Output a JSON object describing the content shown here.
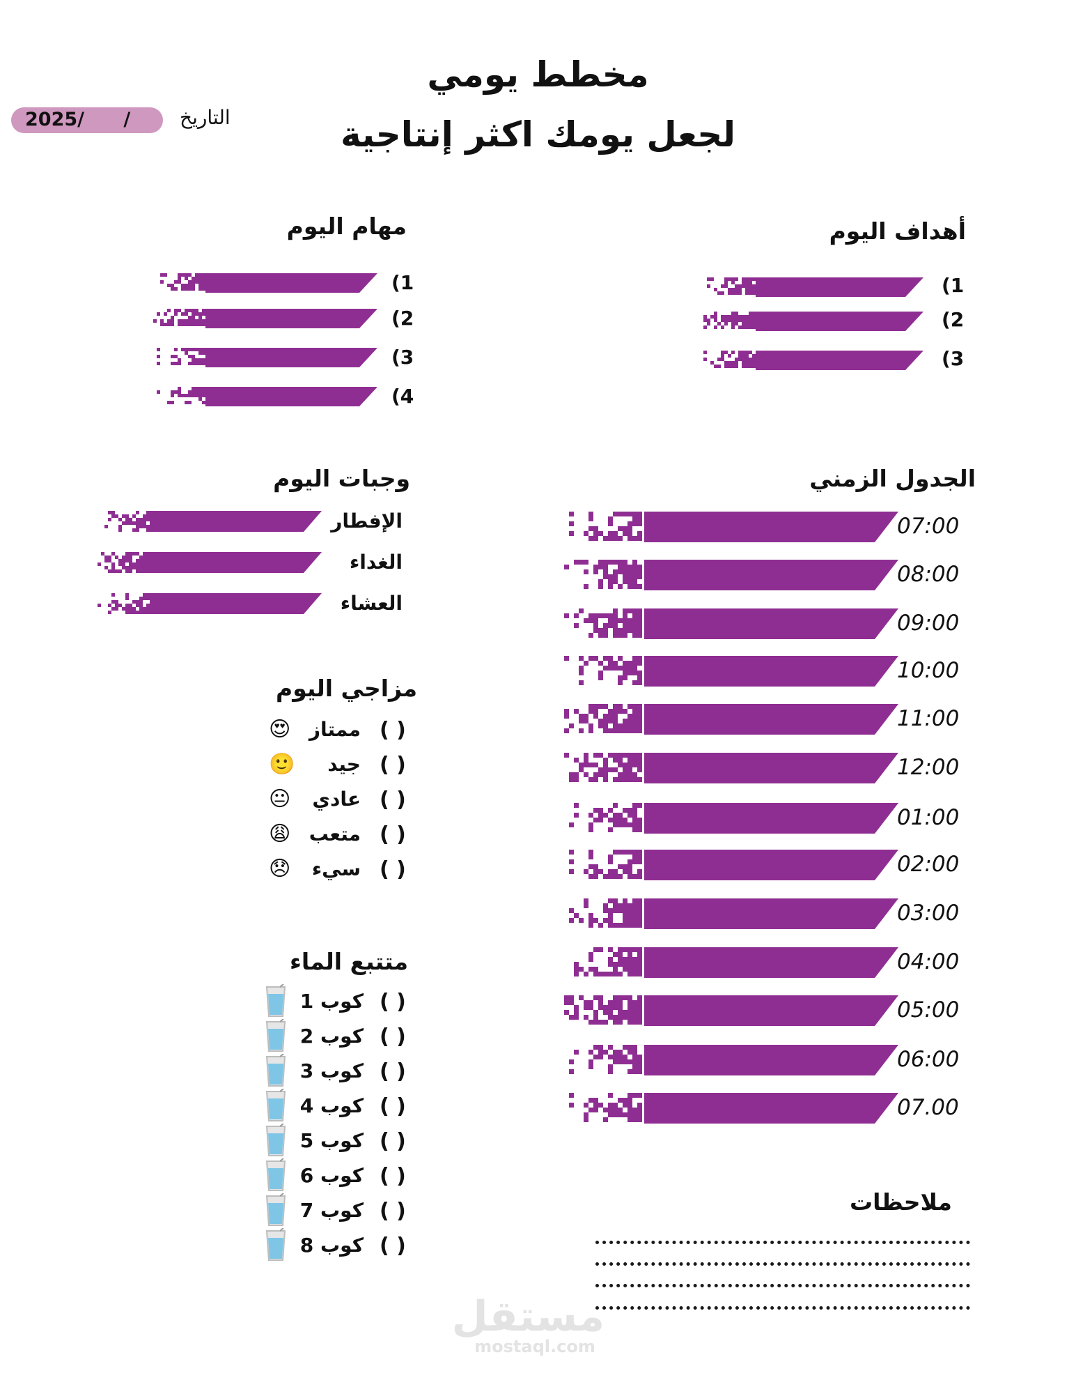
{
  "header": {
    "title_line1": "مخطط يومي",
    "title_line2": "لجعل يومك اكثر إنتاجية",
    "date_label": "التاريخ",
    "date_value": "2025/      /"
  },
  "goals": {
    "heading": "أهداف اليوم",
    "items": [
      "(1",
      "(2",
      "(3"
    ]
  },
  "tasks": {
    "heading": "مهام اليوم",
    "items": [
      "(1",
      "(2",
      "(3",
      "(4"
    ]
  },
  "meals": {
    "heading": "وجبات اليوم",
    "items": [
      "الإفطار",
      "الغداء",
      "العشاء"
    ]
  },
  "schedule": {
    "heading": "الجدول الزمني",
    "times": [
      "07:00",
      "08:00",
      "09:00",
      "10:00",
      "11:00",
      "12:00",
      "01:00",
      "02:00",
      "03:00",
      "04:00",
      "05:00",
      "06:00",
      "07.00"
    ]
  },
  "mood": {
    "heading": "مزاجي اليوم",
    "checkbox": "(      )",
    "items": [
      {
        "label": "ممتاز",
        "icon": "heart-eyes-emoji"
      },
      {
        "label": "جيد",
        "icon": "smile-emoji"
      },
      {
        "label": "عادي",
        "icon": "neutral-emoji"
      },
      {
        "label": "متعب",
        "icon": "tired-emoji"
      },
      {
        "label": "سيء",
        "icon": "sad-emoji"
      }
    ]
  },
  "water": {
    "heading": "متتبع الماء",
    "checkbox": "(      )",
    "items": [
      "كوب  1",
      "كوب  2",
      "كوب  3",
      "كوب  4",
      "كوب  5",
      "كوب  6",
      "كوب  7",
      "كوب  8"
    ],
    "icon": "water-glass-icon"
  },
  "notes": {
    "heading": "ملاحظات"
  },
  "watermark": {
    "logo": "مستقل",
    "site": "mostaql.com"
  },
  "colors": {
    "accent": "#8f2e92",
    "pill": "#cf98bf"
  }
}
